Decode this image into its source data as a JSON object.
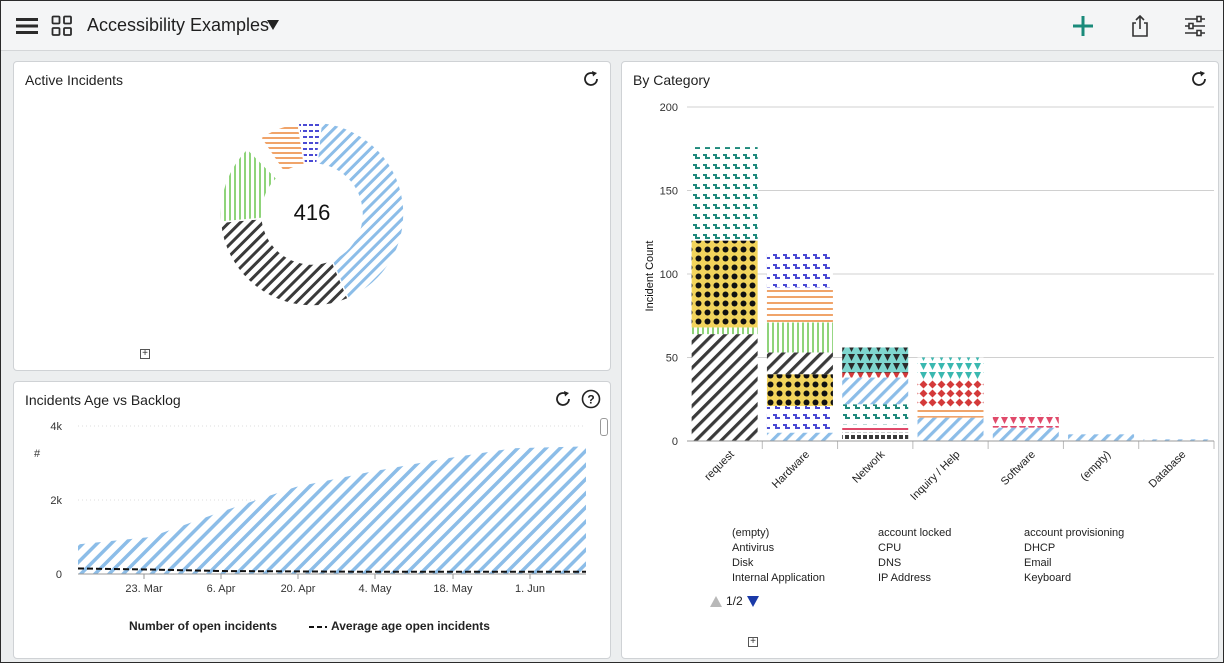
{
  "header": {
    "title": "Accessibility Examples",
    "icons": {
      "menu": "hamburger-menu-icon",
      "grid": "grid-icon",
      "dropdown": "triangle-down-icon",
      "add": "plus-icon",
      "share": "share-icon",
      "settings": "sliders-icon"
    },
    "accent_color": "#1a8a7a"
  },
  "active_incidents": {
    "title": "Active Incidents",
    "total": "416",
    "chart_data": {
      "type": "pie",
      "title": "Active Incidents",
      "center_value": 416,
      "segments": [
        {
          "share": 0.42,
          "color": "#8cbde8",
          "pattern": "diagonal-lines"
        },
        {
          "share": 0.3,
          "color": "#3a3a3a",
          "pattern": "diagonal-lines"
        },
        {
          "share": 0.14,
          "color": "#8fd47a",
          "pattern": "vertical-lines"
        },
        {
          "share": 0.03,
          "color": "#ffffff",
          "pattern": "none"
        },
        {
          "share": 0.07,
          "color": "#f0a46a",
          "pattern": "horizontal-lines"
        },
        {
          "share": 0.04,
          "color": "#4a4ad4",
          "pattern": "dashes"
        }
      ]
    }
  },
  "backlog": {
    "title": "Incidents Age vs Backlog",
    "legend": [
      "Number of open incidents",
      "Average age open incidents"
    ],
    "chart_data": {
      "type": "area",
      "ylabel": "#",
      "ylim": [
        0,
        4000
      ],
      "y_ticks": [
        "0",
        "2k",
        "4k"
      ],
      "x_ticks": [
        "23. Mar",
        "6. Apr",
        "20. Apr",
        "4. May",
        "18. May",
        "1. Jun"
      ],
      "series": [
        {
          "name": "Number of open incidents",
          "type": "area",
          "x": [
            "15. Mar",
            "23. Mar",
            "6. Apr",
            "20. Apr",
            "4. May",
            "18. May",
            "1. Jun",
            "8. Jun"
          ],
          "values": [
            800,
            1000,
            1700,
            2350,
            2750,
            3100,
            3400,
            3450
          ]
        },
        {
          "name": "Average age open incidents",
          "type": "line",
          "x": [
            "15. Mar",
            "23. Mar",
            "6. Apr",
            "20. Apr",
            "4. May",
            "18. May",
            "1. Jun",
            "8. Jun"
          ],
          "values": [
            150,
            120,
            80,
            70,
            60,
            60,
            60,
            60
          ]
        }
      ]
    }
  },
  "by_category": {
    "title": "By Category",
    "y_axis_label": "Incident Count",
    "pager": "1/2",
    "legend": [
      "(empty)",
      "account locked",
      "account provisioning",
      "Antivirus",
      "CPU",
      "DHCP",
      "Disk",
      "DNS",
      "Email",
      "Internal Application",
      "IP Address",
      "Keyboard"
    ],
    "chart_data": {
      "type": "bar",
      "stacked": true,
      "ylabel": "Incident Count",
      "ylim": [
        0,
        200
      ],
      "y_ticks": [
        0,
        50,
        100,
        150,
        200
      ],
      "categories": [
        "request",
        "Hardware",
        "Network",
        "Inquiry / Help",
        "Software",
        "(empty)",
        "Database"
      ],
      "stacks": [
        [
          {
            "value": 64,
            "color": "#3a3a3a",
            "pattern": "diag"
          },
          {
            "value": 4,
            "color": "#8fd47a",
            "pattern": "vert"
          },
          {
            "value": 52,
            "color": "#f2d45c",
            "pattern": "dots"
          },
          {
            "value": 56,
            "color": "#1f8a7c",
            "pattern": "squiggle"
          }
        ],
        [
          {
            "value": 5,
            "color": "#8cbde8",
            "pattern": "diag"
          },
          {
            "value": 16,
            "color": "#4a4ad4",
            "pattern": "squiggle"
          },
          {
            "value": 19,
            "color": "#f2d45c",
            "pattern": "dots"
          },
          {
            "value": 13,
            "color": "#3a3a3a",
            "pattern": "diag"
          },
          {
            "value": 18,
            "color": "#8fd47a",
            "pattern": "vert"
          },
          {
            "value": 21,
            "color": "#f0a46a",
            "pattern": "horiz"
          },
          {
            "value": 21,
            "color": "#4a4ad4",
            "pattern": "squiggle"
          }
        ],
        [
          {
            "value": 5,
            "color": "#3a3a3a",
            "pattern": "squares"
          },
          {
            "value": 5,
            "color": "#e04a6a",
            "pattern": "horiz"
          },
          {
            "value": 12,
            "color": "#1f8a7c",
            "pattern": "squiggle"
          },
          {
            "value": 16,
            "color": "#8cbde8",
            "pattern": "diag"
          },
          {
            "value": 3,
            "color": "#d43a3a",
            "pattern": "triangles"
          },
          {
            "value": 15,
            "color": "#2a2a2a",
            "pattern": "triangles"
          }
        ],
        [
          {
            "value": 14,
            "color": "#8cbde8",
            "pattern": "diag"
          },
          {
            "value": 6,
            "color": "#f0a46a",
            "pattern": "horiz"
          },
          {
            "value": 17,
            "color": "#d43a3a",
            "pattern": "diamonds"
          },
          {
            "value": 13,
            "color": "#3ab8b0",
            "pattern": "triangles"
          }
        ],
        [
          {
            "value": 8,
            "color": "#8cbde8",
            "pattern": "diag"
          },
          {
            "value": 8,
            "color": "#e04a6a",
            "pattern": "triangles"
          }
        ],
        [
          {
            "value": 4,
            "color": "#8cbde8",
            "pattern": "diag"
          }
        ],
        [
          {
            "value": 1,
            "color": "#8cbde8",
            "pattern": "diag"
          }
        ]
      ]
    }
  }
}
